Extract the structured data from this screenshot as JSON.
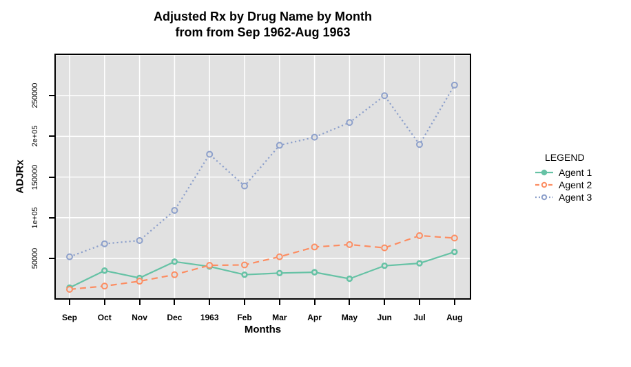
{
  "figure": {
    "title_line1": "Adjusted Rx by Drug Name by Month",
    "title_line2": "from from Sep 1962-Aug 1963"
  },
  "axes": {
    "x_title": "Months",
    "y_title": "ADJRx",
    "x_tick_labels": [
      "Sep",
      "Oct",
      "Nov",
      "Dec",
      "1963",
      "Feb",
      "Mar",
      "Apr",
      "May",
      "Jun",
      "Jul",
      "Aug"
    ],
    "y_ticks": [
      {
        "value": 50000,
        "label": "50000"
      },
      {
        "value": 100000,
        "label": "1e+05"
      },
      {
        "value": 150000,
        "label": "150000"
      },
      {
        "value": 200000,
        "label": "2e+05"
      },
      {
        "value": 250000,
        "label": "250000"
      }
    ],
    "unlabeled_gridlines_y": [
      300000
    ]
  },
  "legend": {
    "title": "LEGEND",
    "items": [
      {
        "label": "Agent 1",
        "color": "#66C2A5",
        "line_style": "solid",
        "marker": "filled-circle"
      },
      {
        "label": "Agent 2",
        "color": "#FC8D62",
        "line_style": "dashed",
        "marker": "open-circle"
      },
      {
        "label": "Agent 3",
        "color": "#8DA0CB",
        "line_style": "dotted",
        "marker": "open-circle"
      }
    ]
  },
  "colors": {
    "panel_background": "#E1E1E1",
    "gridline": "#FFFFFF",
    "frame": "#000000",
    "agent1": "#66C2A5",
    "agent2": "#FC8D62",
    "agent3": "#8DA0CB"
  },
  "chart_data": {
    "type": "line",
    "title": "Adjusted Rx by Drug Name by Month from from Sep 1962-Aug 1963",
    "xlabel": "Months",
    "ylabel": "ADJRx",
    "categories": [
      "Sep",
      "Oct",
      "Nov",
      "Dec",
      "1963",
      "Feb",
      "Mar",
      "Apr",
      "May",
      "Jun",
      "Jul",
      "Aug"
    ],
    "series": [
      {
        "name": "Agent 1",
        "color": "#66C2A5",
        "line_style": "solid",
        "values": [
          14000,
          35000,
          26000,
          46000,
          40000,
          30000,
          32000,
          33000,
          25000,
          41000,
          44000,
          58000
        ]
      },
      {
        "name": "Agent 2",
        "color": "#FC8D62",
        "line_style": "dashed",
        "values": [
          12000,
          16000,
          22000,
          30000,
          41500,
          42000,
          52000,
          64000,
          67000,
          63000,
          78000,
          75000
        ]
      },
      {
        "name": "Agent 3",
        "color": "#8DA0CB",
        "line_style": "dotted",
        "values": [
          52000,
          68000,
          72000,
          109000,
          178000,
          139000,
          189000,
          199000,
          217000,
          250000,
          190000,
          263000
        ]
      }
    ],
    "ylim": [
      -700,
      301700
    ],
    "grid": true,
    "legend_position": "right"
  }
}
